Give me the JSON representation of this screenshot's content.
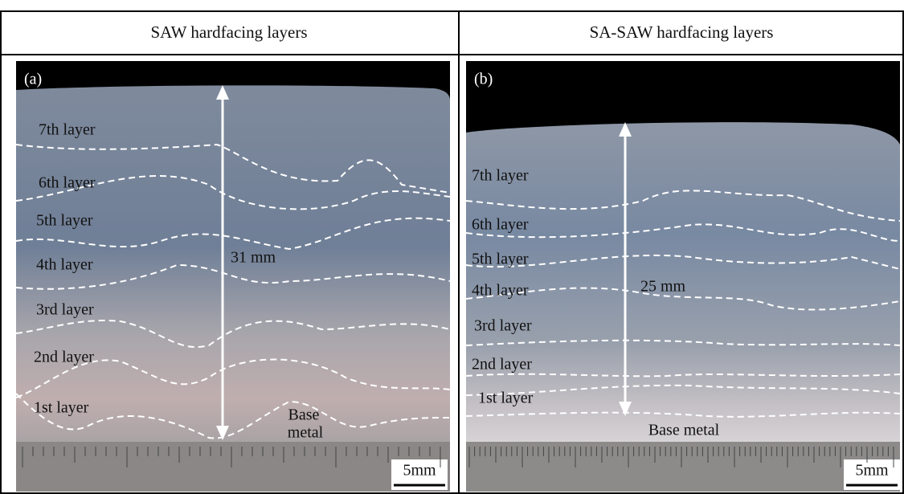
{
  "header": {
    "left": "SAW hardfacing layers",
    "right": "SA-SAW hardfacing layers"
  },
  "panels": [
    {
      "label": "(a)",
      "layers": [
        "7th layer",
        "6th layer",
        "5th layer",
        "4th layer",
        "3rd layer",
        "2nd layer",
        "1st layer"
      ],
      "height": "31 mm",
      "base": [
        "Base",
        "metal"
      ],
      "scale": "5mm"
    },
    {
      "label": "(b)",
      "layers": [
        "7th layer",
        "6th layer",
        "5th layer",
        "4th layer",
        "3rd layer",
        "2nd layer",
        "1st layer"
      ],
      "height": "25 mm",
      "base": [
        "Base metal"
      ],
      "scale": "5mm"
    }
  ]
}
